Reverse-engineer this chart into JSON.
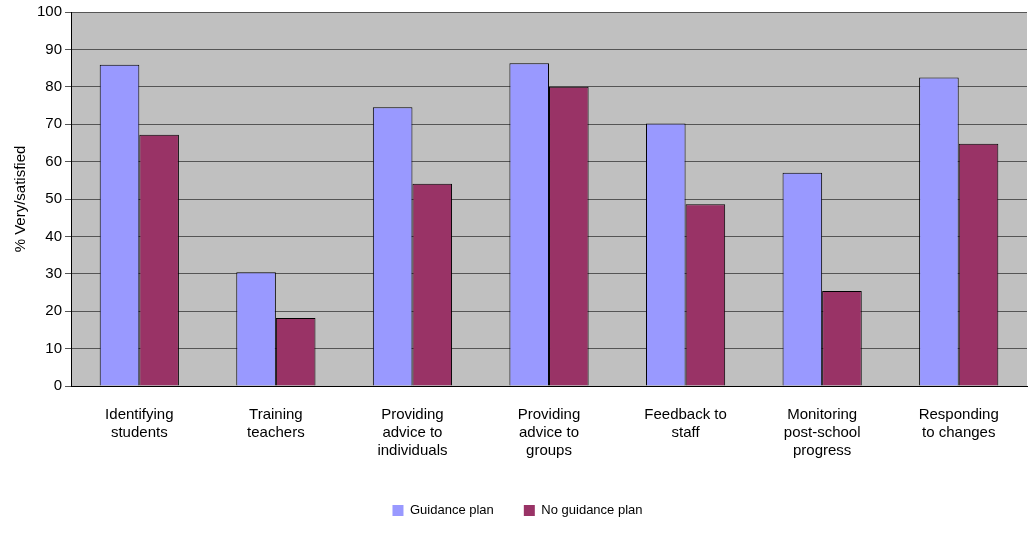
{
  "chart_data": {
    "type": "bar",
    "ylabel": "% Very/satisfied",
    "categories": [
      "Identifying students",
      "Training teachers",
      "Providing advice to individuals",
      "Providing advice to groups",
      "Feedback to staff",
      "Monitoring post-school progress",
      "Responding to changes"
    ],
    "series": [
      {
        "name": "Guidance plan",
        "color": "#9999ff",
        "values": [
          85.9,
          30.4,
          74.5,
          86.3,
          70.2,
          57.0,
          82.5
        ]
      },
      {
        "name": "No guidance plan",
        "color": "#993366",
        "values": [
          67.2,
          18.2,
          54.1,
          80.0,
          48.6,
          25.4,
          64.8
        ]
      }
    ],
    "ylim": [
      0,
      100
    ],
    "yticks": [
      0,
      10,
      20,
      30,
      40,
      50,
      60,
      70,
      80,
      90,
      100
    ],
    "grid": "y",
    "legend": "bottom"
  }
}
